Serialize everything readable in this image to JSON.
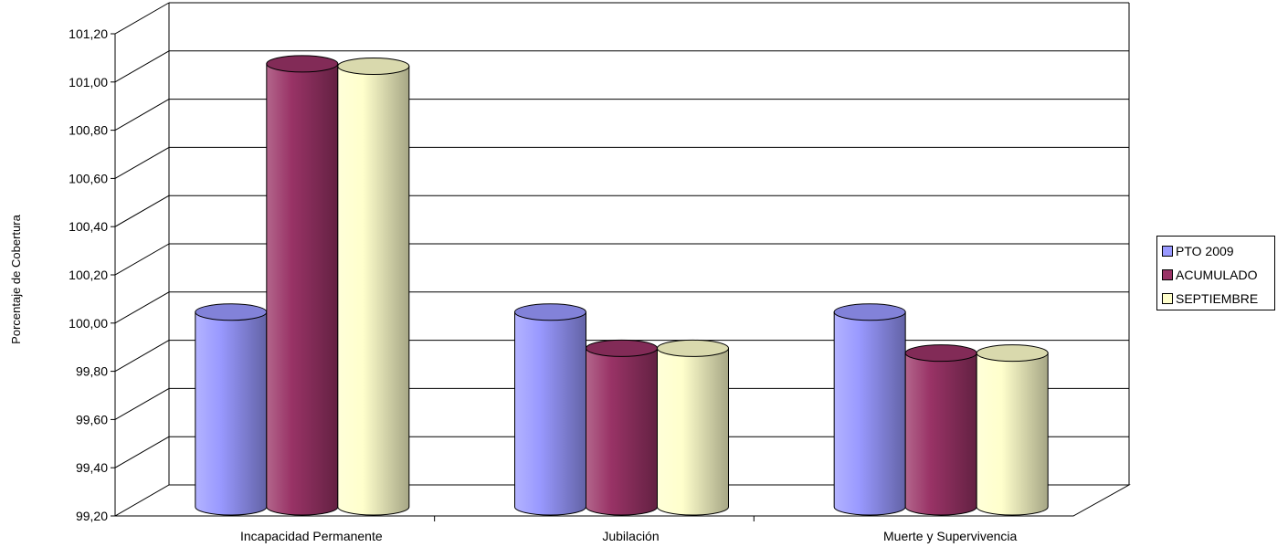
{
  "chart_data": {
    "type": "bar",
    "ylabel": "Porcentaje de Cobertura",
    "xlabel": "",
    "ylim": [
      99.2,
      101.2
    ],
    "ystep": 0.2,
    "categories": [
      "Incapacidad Permanente",
      "Jubilación",
      "Muerte y Supervivencia"
    ],
    "series": [
      {
        "name": "PTO 2009",
        "color": "#9999ff",
        "values": [
          100.0,
          100.0,
          100.0
        ]
      },
      {
        "name": "ACUMULADO",
        "color": "#993366",
        "values": [
          101.03,
          99.85,
          99.83
        ]
      },
      {
        "name": "SEPTIEMBRE",
        "color": "#ffffcc",
        "values": [
          101.02,
          99.85,
          99.83
        ]
      }
    ],
    "legend": "right",
    "grid": true,
    "style": "3d-cylinder"
  }
}
